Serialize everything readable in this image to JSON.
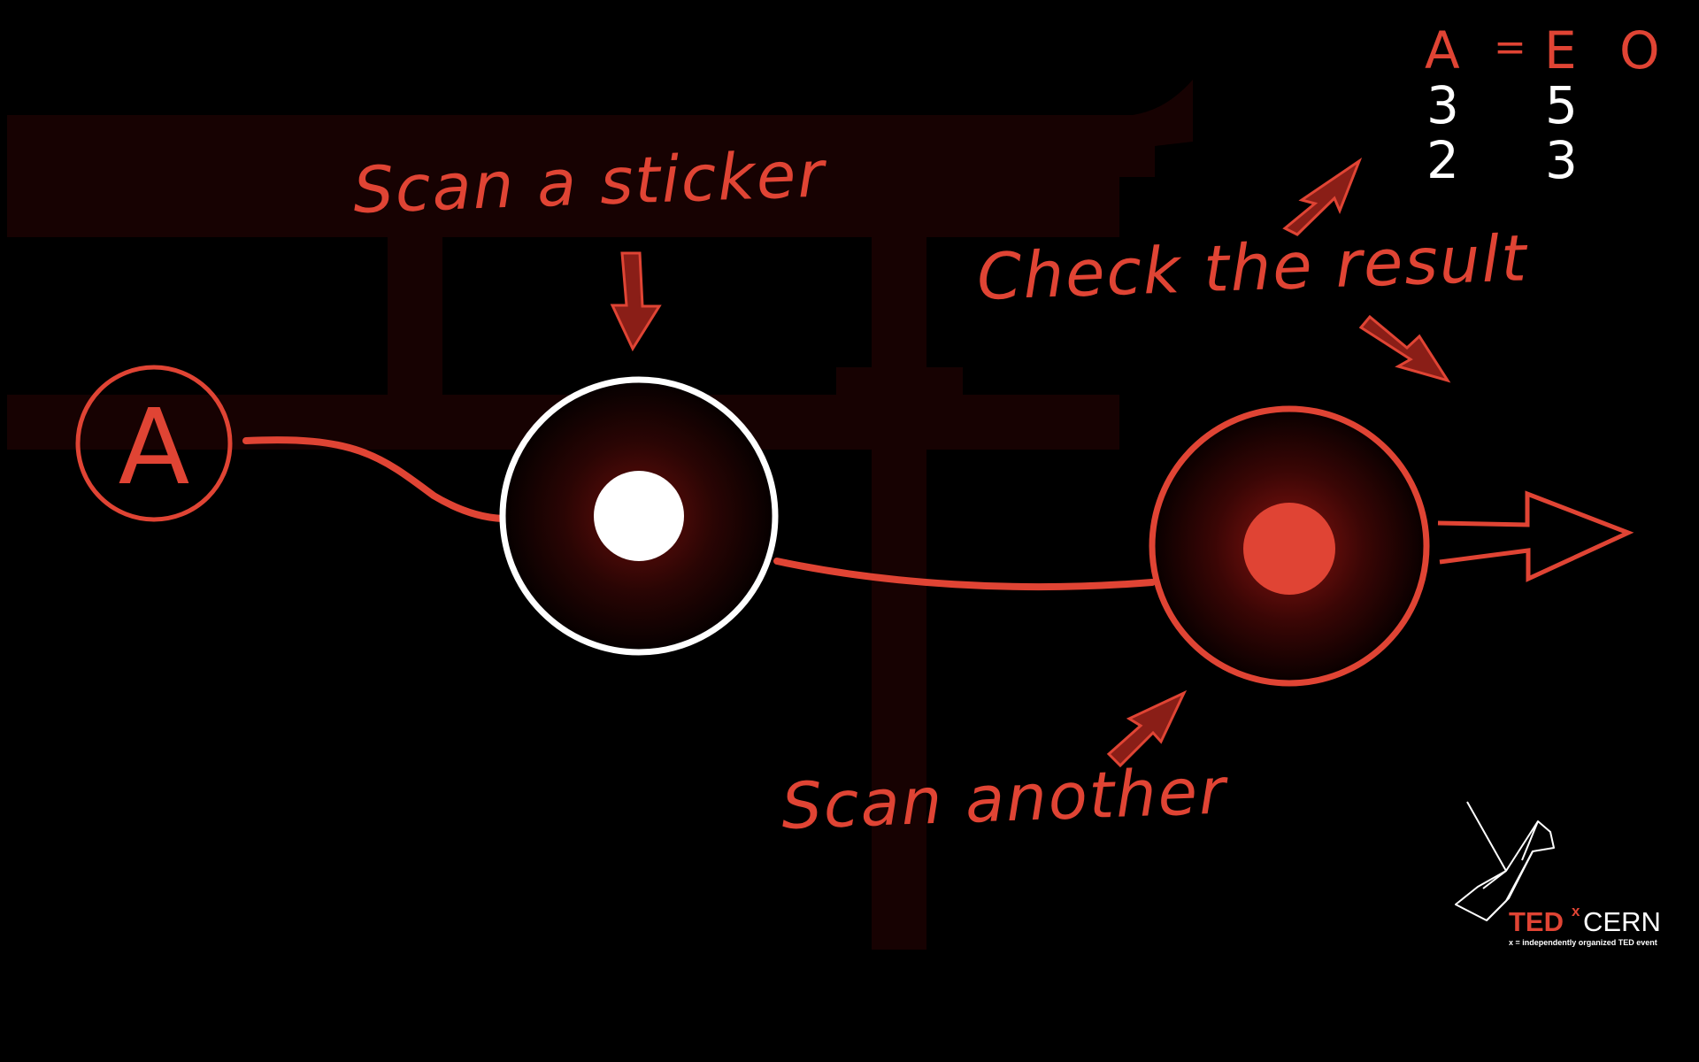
{
  "labels": {
    "scan_sticker": "Scan a sticker",
    "check_result": "Check the result",
    "scan_another": "Scan another",
    "start_node": "A"
  },
  "result_table": {
    "header": [
      "A",
      "=",
      "E",
      "O"
    ],
    "rows": [
      [
        "3",
        "5"
      ],
      [
        "2",
        "3"
      ]
    ]
  },
  "logo": {
    "ted": "TED",
    "x": "x",
    "cern": "CERN",
    "tagline": "x = independently organized TED event"
  },
  "colors": {
    "background": "#000000",
    "accent": "#e04434",
    "gate": "#170202",
    "white": "#ffffff"
  },
  "icons": {
    "gate": "torii-gate-icon",
    "bird": "origami-bird-icon"
  }
}
